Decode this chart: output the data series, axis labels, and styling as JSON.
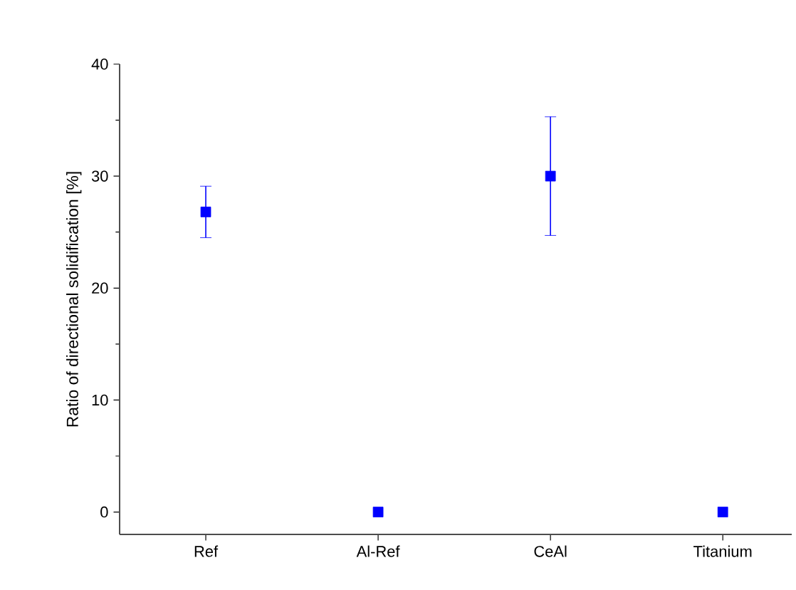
{
  "chart_data": {
    "type": "scatter",
    "ylabel": "Ratio of directional solidification [%]",
    "categories": [
      "Ref",
      "Al-Ref",
      "CeAl",
      "Titanium"
    ],
    "values": [
      26.8,
      0,
      30.0,
      0
    ],
    "errors": [
      2.3,
      null,
      5.3,
      null
    ],
    "color": "#0000ff",
    "marker": "square",
    "ylim": [
      -2,
      40
    ],
    "yticks": [
      0,
      10,
      20,
      30,
      40
    ]
  }
}
